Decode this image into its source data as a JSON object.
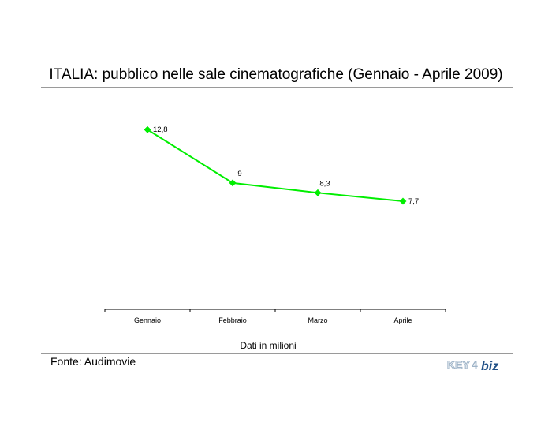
{
  "title": "ITALIA: pubblico nelle sale cinematografiche (Gennaio - Aprile 2009)",
  "note": "Dati in milioni",
  "source": "Fonte: Audimovie",
  "logo": {
    "text_left": "KEY",
    "text_right": "biz",
    "color_left": "#9fb4c8",
    "color_right": "#1f4f86"
  },
  "chart_data": {
    "type": "line",
    "title": "ITALIA: pubblico nelle sale cinematografiche (Gennaio - Aprile 2009)",
    "categories": [
      "Gennaio",
      "Febbraio",
      "Marzo",
      "Aprile"
    ],
    "series": [
      {
        "values": [
          12.8,
          9,
          8.3,
          7.7
        ],
        "labels": [
          "12,8",
          "9",
          "8,3",
          "7,7"
        ],
        "color": "#00ee00"
      }
    ],
    "ylim": [
      0,
      14.5
    ],
    "grid": false,
    "legend": false,
    "y_axis_visible": false
  }
}
